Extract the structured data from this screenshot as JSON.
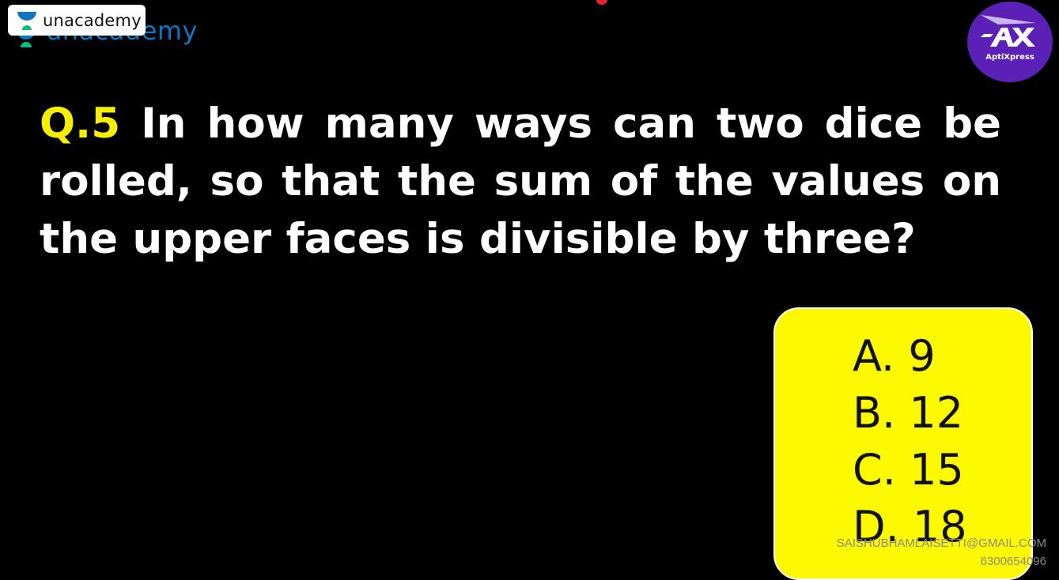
{
  "branding": {
    "unacademy_label": "unacademy",
    "unacademy_ghost_label": "unacademy",
    "unacademy_icon": "unacademy-logo-icon",
    "aptix_label": "AptiXpress",
    "aptix_icon": "aptixpress-logo-icon",
    "colors": {
      "unacademy_blue": "#0f76c4",
      "unacademy_green": "#08bd80",
      "aptix_purple": "#5b21b6",
      "question_yellow": "#f6f000",
      "option_box_yellow": "#fdf900"
    }
  },
  "question": {
    "number": "Q.5",
    "text": "In how many ways can two dice be rolled, so that the sum of the values on the upper faces is divisible by three?"
  },
  "options": [
    {
      "label": "A. 9"
    },
    {
      "label": "B. 12"
    },
    {
      "label": "C. 15"
    },
    {
      "label": "D. 18"
    }
  ],
  "watermark": {
    "email": "SAISHUBHAMLAISETTI@GMAIL.COM",
    "phone": "6300654096"
  }
}
